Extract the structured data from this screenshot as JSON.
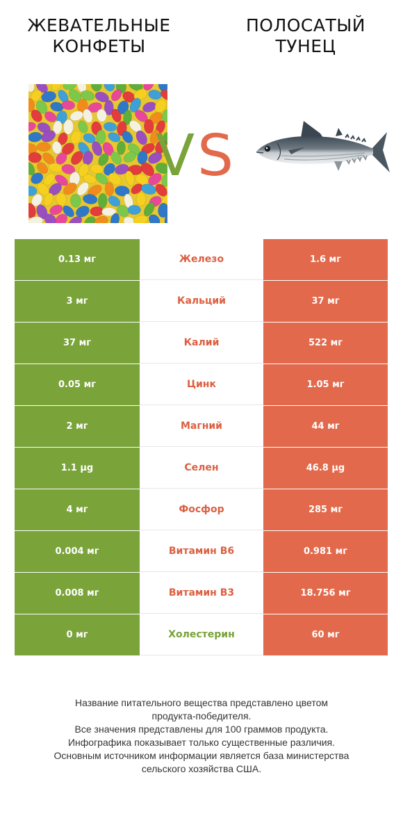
{
  "header": {
    "left_title_line1": "ЖЕВАТЕЛЬНЫЕ",
    "left_title_line2": "КОНФЕТЫ",
    "right_title_line1": "ПОЛОСАТЫЙ",
    "right_title_line2": "ТУНЕЦ",
    "vs_v": "V",
    "vs_s": "S"
  },
  "colors": {
    "left_product": "#7aa33a",
    "right_product": "#e2694b"
  },
  "images": {
    "left": "jelly-beans-image",
    "right": "tuna-fish-image"
  },
  "rows": [
    {
      "left": "0.13 мг",
      "nutrient": "Железо",
      "right": "1.6 мг",
      "winner": "right"
    },
    {
      "left": "3 мг",
      "nutrient": "Кальций",
      "right": "37 мг",
      "winner": "right"
    },
    {
      "left": "37 мг",
      "nutrient": "Калий",
      "right": "522 мг",
      "winner": "right"
    },
    {
      "left": "0.05 мг",
      "nutrient": "Цинк",
      "right": "1.05 мг",
      "winner": "right"
    },
    {
      "left": "2 мг",
      "nutrient": "Магний",
      "right": "44 мг",
      "winner": "right"
    },
    {
      "left": "1.1 µg",
      "nutrient": "Селен",
      "right": "46.8 µg",
      "winner": "right"
    },
    {
      "left": "4 мг",
      "nutrient": "Фосфор",
      "right": "285 мг",
      "winner": "right"
    },
    {
      "left": "0.004 мг",
      "nutrient": "Витамин B6",
      "right": "0.981 мг",
      "winner": "right"
    },
    {
      "left": "0.008 мг",
      "nutrient": "Витамин B3",
      "right": "18.756 мг",
      "winner": "right"
    },
    {
      "left": "0 мг",
      "nutrient": "Холестерин",
      "right": "60 мг",
      "winner": "left"
    }
  ],
  "footer": {
    "line1": "Название питательного вещества представлено цветом",
    "line2": "продукта-победителя.",
    "line3": "Все значения представлены для 100 граммов продукта.",
    "line4": "Инфографика показывает только существенные различия.",
    "line5": "Основным источником информации является база министерства",
    "line6": "сельского хозяйства США."
  }
}
